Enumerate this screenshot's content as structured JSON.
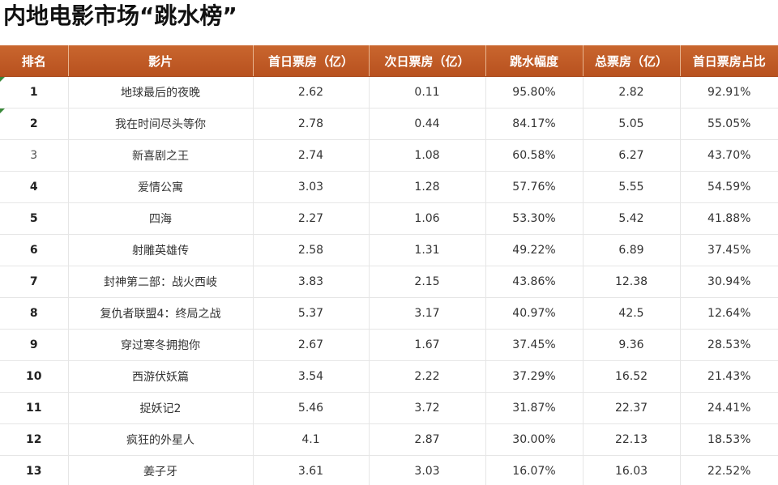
{
  "title": "内地电影市场“跳水榜”",
  "headers": [
    "排名",
    "影片",
    "首日票房（亿）",
    "次日票房（亿）",
    "跳水幅度",
    "总票房（亿）",
    "首日票房占比"
  ],
  "rows": [
    {
      "rank": "1",
      "film": "地球最后的夜晚",
      "day1": "2.62",
      "day2": "0.11",
      "drop": "95.80%",
      "total": "2.82",
      "share": "92.91%"
    },
    {
      "rank": "2",
      "film": "我在时间尽头等你",
      "day1": "2.78",
      "day2": "0.44",
      "drop": "84.17%",
      "total": "5.05",
      "share": "55.05%"
    },
    {
      "rank": "3",
      "film": "新喜剧之王",
      "day1": "2.74",
      "day2": "1.08",
      "drop": "60.58%",
      "total": "6.27",
      "share": "43.70%"
    },
    {
      "rank": "4",
      "film": "爱情公寓",
      "day1": "3.03",
      "day2": "1.28",
      "drop": "57.76%",
      "total": "5.55",
      "share": "54.59%"
    },
    {
      "rank": "5",
      "film": "四海",
      "day1": "2.27",
      "day2": "1.06",
      "drop": "53.30%",
      "total": "5.42",
      "share": "41.88%"
    },
    {
      "rank": "6",
      "film": "射雕英雄传",
      "day1": "2.58",
      "day2": "1.31",
      "drop": "49.22%",
      "total": "6.89",
      "share": "37.45%"
    },
    {
      "rank": "7",
      "film": "封神第二部：战火西岐",
      "day1": "3.83",
      "day2": "2.15",
      "drop": "43.86%",
      "total": "12.38",
      "share": "30.94%"
    },
    {
      "rank": "8",
      "film": "复仇者联盟4：终局之战",
      "day1": "5.37",
      "day2": "3.17",
      "drop": "40.97%",
      "total": "42.5",
      "share": "12.64%"
    },
    {
      "rank": "9",
      "film": "穿过寒冬拥抱你",
      "day1": "2.67",
      "day2": "1.67",
      "drop": "37.45%",
      "total": "9.36",
      "share": "28.53%"
    },
    {
      "rank": "10",
      "film": "西游伏妖篇",
      "day1": "3.54",
      "day2": "2.22",
      "drop": "37.29%",
      "total": "16.52",
      "share": "21.43%"
    },
    {
      "rank": "11",
      "film": "捉妖记2",
      "day1": "5.46",
      "day2": "3.72",
      "drop": "31.87%",
      "total": "22.37",
      "share": "24.41%"
    },
    {
      "rank": "12",
      "film": "疯狂的外星人",
      "day1": "4.1",
      "day2": "2.87",
      "drop": "30.00%",
      "total": "22.13",
      "share": "18.53%"
    },
    {
      "rank": "13",
      "film": "姜子牙",
      "day1": "3.61",
      "day2": "3.03",
      "drop": "16.07%",
      "total": "16.03",
      "share": "22.52%"
    }
  ],
  "chart_data": {
    "type": "table",
    "title": "内地电影市场“跳水榜”",
    "columns": [
      "排名",
      "影片",
      "首日票房（亿）",
      "次日票房（亿）",
      "跳水幅度",
      "总票房（亿）",
      "首日票房占比"
    ],
    "cells": [
      [
        "1",
        "地球最后的夜晚",
        "2.62",
        "0.11",
        "95.80%",
        "2.82",
        "92.91%"
      ],
      [
        "2",
        "我在时间尽头等你",
        "2.78",
        "0.44",
        "84.17%",
        "5.05",
        "55.05%"
      ],
      [
        "3",
        "新喜剧之王",
        "2.74",
        "1.08",
        "60.58%",
        "6.27",
        "43.70%"
      ],
      [
        "4",
        "爱情公寓",
        "3.03",
        "1.28",
        "57.76%",
        "5.55",
        "54.59%"
      ],
      [
        "5",
        "四海",
        "2.27",
        "1.06",
        "53.30%",
        "5.42",
        "41.88%"
      ],
      [
        "6",
        "射雕英雄传",
        "2.58",
        "1.31",
        "49.22%",
        "6.89",
        "37.45%"
      ],
      [
        "7",
        "封神第二部：战火西岐",
        "3.83",
        "2.15",
        "43.86%",
        "12.38",
        "30.94%"
      ],
      [
        "8",
        "复仇者联盟4：终局之战",
        "5.37",
        "3.17",
        "40.97%",
        "42.5",
        "12.64%"
      ],
      [
        "9",
        "穿过寒冬拥抱你",
        "2.67",
        "1.67",
        "37.45%",
        "9.36",
        "28.53%"
      ],
      [
        "10",
        "西游伏妖篇",
        "3.54",
        "2.22",
        "37.29%",
        "16.52",
        "21.43%"
      ],
      [
        "11",
        "捉妖记2",
        "5.46",
        "3.72",
        "31.87%",
        "22.37",
        "24.41%"
      ],
      [
        "12",
        "疯狂的外星人",
        "4.1",
        "2.87",
        "30.00%",
        "22.13",
        "18.53%"
      ],
      [
        "13",
        "姜子牙",
        "3.61",
        "3.03",
        "16.07%",
        "16.03",
        "22.52%"
      ]
    ]
  },
  "colors": {
    "header_bg": "#c0592b",
    "header_text": "#ffffff",
    "grid_line": "#e6e6e6",
    "corner_marker": "#3a8a3a"
  }
}
